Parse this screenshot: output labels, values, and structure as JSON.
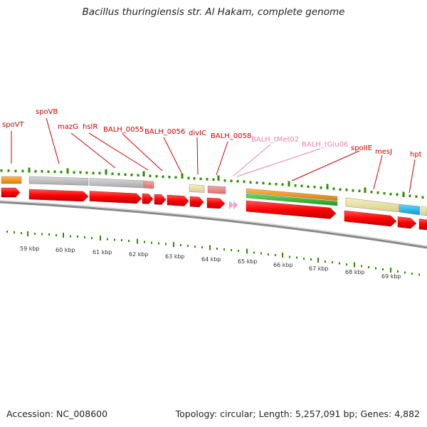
{
  "header": {
    "title": "Bacillus thuringiensis str. Al Hakam, complete genome"
  },
  "footer": {
    "accession": "Accession: NC_008600",
    "topology": "Topology: circular; Length: 5,257,091 bp; Genes: 4,882"
  },
  "gene_labels": [
    {
      "text": "spoVT",
      "kind": "gene"
    },
    {
      "text": "spoVB",
      "kind": "gene"
    },
    {
      "text": "mazG",
      "kind": "gene"
    },
    {
      "text": "hslR",
      "kind": "gene"
    },
    {
      "text": "BALH_0055",
      "kind": "gene"
    },
    {
      "text": "BALH_0056",
      "kind": "gene"
    },
    {
      "text": "divIC",
      "kind": "gene"
    },
    {
      "text": "BALH_0058",
      "kind": "gene"
    },
    {
      "text": "BALH_tMet02",
      "kind": "trna"
    },
    {
      "text": "BALH_tGlu06",
      "kind": "trna"
    },
    {
      "text": "spoIIE",
      "kind": "gene"
    },
    {
      "text": "mesJ",
      "kind": "gene"
    },
    {
      "text": "hpt",
      "kind": "gene"
    }
  ],
  "scale": {
    "unit": "kbp",
    "labels": [
      "59 kbp",
      "60 kbp",
      "61 kbp",
      "62 kbp",
      "63 kbp",
      "64 kbp",
      "65 kbp",
      "66 kbp",
      "67 kbp",
      "68 kbp",
      "69 kbp"
    ]
  },
  "colors": {
    "cds": "#ff0000",
    "trna": "#ff99cc",
    "gene_label": "#cc0000",
    "trna_label": "#ea80b0",
    "tick": "#2e8b00",
    "backbone": "#888888",
    "feature_orange": "#ff9900",
    "feature_grey": "#c0c0c0",
    "feature_pink": "#f08080",
    "feature_tan": "#ede5a0",
    "feature_green": "#33cc33",
    "feature_blue": "#22bbee"
  }
}
